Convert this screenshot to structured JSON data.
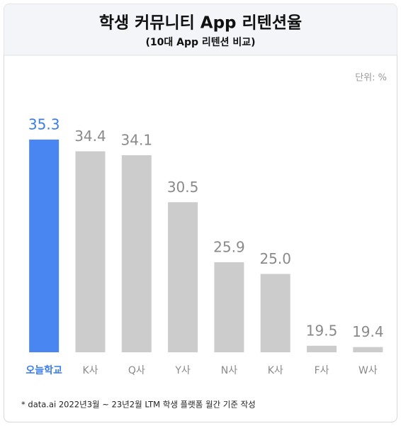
{
  "chart_data": {
    "type": "bar",
    "title": "학생 커뮤니티 App 리텐션율",
    "subtitle": "(10대 App 리텐션 비교)",
    "unit_label": "단위: %",
    "footnote": "* data.ai 2022년3월 ~ 23년2월 LTM 학생 플랫폼 월간 기준 작성",
    "categories": [
      "오늘학교",
      "K사",
      "Q사",
      "Y사",
      "N사",
      "K사",
      "F사",
      "W사"
    ],
    "values": [
      35.3,
      34.4,
      34.1,
      30.5,
      25.9,
      25.0,
      19.5,
      19.4
    ],
    "value_labels": [
      "35.3",
      "34.4",
      "34.1",
      "30.5",
      "25.9",
      "25.0",
      "19.5",
      "19.4"
    ],
    "colors": [
      "#4a86f2",
      "#cccccc",
      "#cccccc",
      "#cccccc",
      "#cccccc",
      "#cccccc",
      "#cccccc",
      "#cccccc"
    ],
    "label_colors": [
      "#3b7de9",
      "#8a8a8a",
      "#8a8a8a",
      "#8a8a8a",
      "#8a8a8a",
      "#8a8a8a",
      "#8a8a8a",
      "#8a8a8a"
    ],
    "ylim": [
      19,
      36
    ]
  }
}
